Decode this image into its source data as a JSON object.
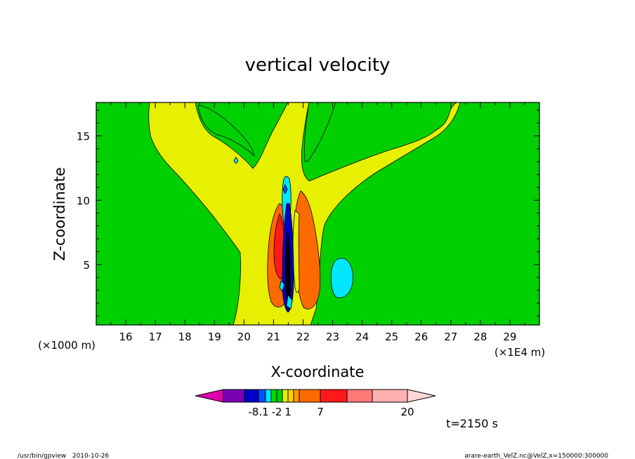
{
  "chart_data": {
    "type": "heatmap",
    "title": "vertical velocity",
    "xlabel": "X-coordinate",
    "ylabel": "Z-coordinate",
    "x_unit_label": "(×1E4 m)",
    "y_unit_label": "(×1000 m)",
    "xlim": [
      15.0,
      30.0
    ],
    "ylim": [
      0.3,
      17.6
    ],
    "x_ticks": [
      16,
      17,
      18,
      19,
      20,
      21,
      22,
      23,
      24,
      25,
      26,
      27,
      28,
      29
    ],
    "y_ticks": [
      5,
      10,
      15
    ],
    "grid": false,
    "time_label": "t=2150 s",
    "colorbar": {
      "tick_labels": [
        {
          "level_index": 2,
          "text": "-8.1"
        },
        {
          "level_index": 5,
          "text": "-2"
        },
        {
          "level_index": 7,
          "text": "1"
        },
        {
          "level_index": 10,
          "text": "7"
        },
        {
          "level_index": 13,
          "text": "20"
        }
      ],
      "colors": [
        "#e000b0",
        "#7800b4",
        "#0000c8",
        "#0050ff",
        "#00e6ff",
        "#00d800",
        "#00d000",
        "#e6f000",
        "#ffd000",
        "#ff9800",
        "#ff6a00",
        "#ff1a1a",
        "#ff7878",
        "#ffb0b0",
        "#ffd8d8"
      ]
    },
    "regions": [
      {
        "label": "background",
        "level": "green",
        "color": "#00d000"
      },
      {
        "label": "updraft-envelope",
        "level": "yellow",
        "color": "#e6f000"
      },
      {
        "label": "updraft-core",
        "level": "orange",
        "color": "#ff6a00"
      },
      {
        "label": "updraft-max",
        "level": "red",
        "color": "#ff1a1a"
      },
      {
        "label": "downdraft-core",
        "level": "dark-blue",
        "color": "#0000c8"
      },
      {
        "label": "downdraft-side",
        "level": "cyan",
        "color": "#00e6ff"
      }
    ]
  },
  "footer": {
    "left": "/usr/bin/gpview   2010-10-26",
    "right": "arare-earth_VelZ.nc@VelZ,x=150000:300000"
  }
}
